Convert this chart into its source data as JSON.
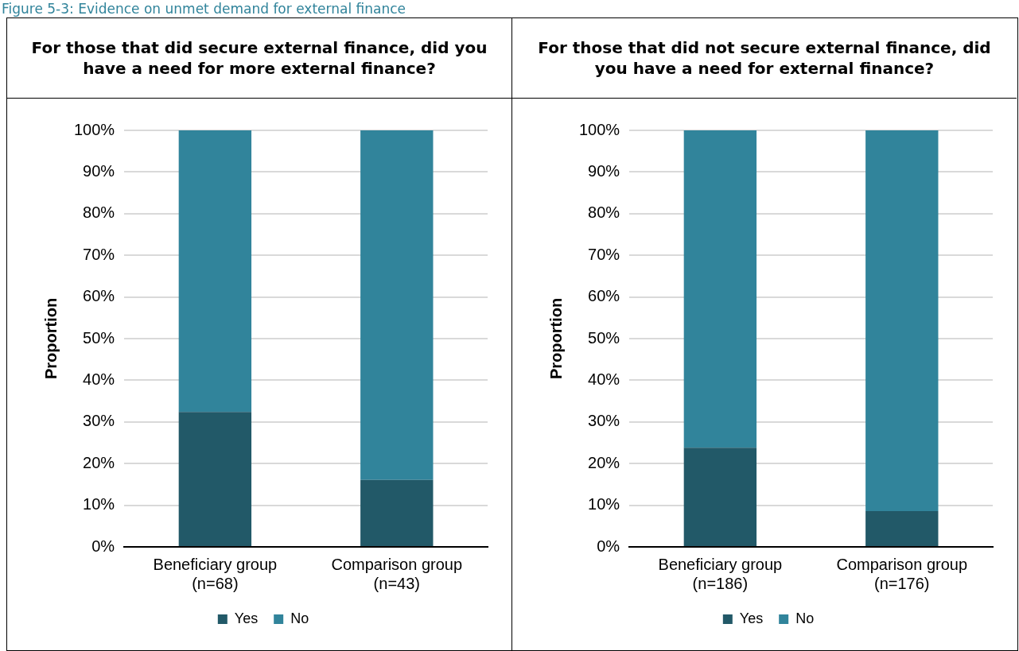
{
  "chart_data": [
    {
      "type": "bar",
      "stacked": true,
      "title": "For those that did secure external finance, did you have a need for more external finance?",
      "annotations": [
        "Figure 5-3: Evidence on unmet demand for external finance"
      ],
      "ylabel": "Proportion",
      "categories": [
        "Beneficiary group\n(n=68)",
        "Comparison group\n(n=43)"
      ],
      "series": [
        {
          "name": "Yes",
          "color": "#225968",
          "values": [
            32.4,
            16.1
          ]
        },
        {
          "name": "No",
          "color": "#31849b",
          "values": [
            67.6,
            83.9
          ]
        }
      ],
      "ylim": [
        0,
        100
      ],
      "yticks": [
        {
          "value": 0,
          "label": "0%"
        },
        {
          "value": 10,
          "label": "10%"
        },
        {
          "value": 20,
          "label": "20%"
        },
        {
          "value": 30,
          "label": "30%"
        },
        {
          "value": 40,
          "label": "40%"
        },
        {
          "value": 50,
          "label": "50%"
        },
        {
          "value": 60,
          "label": "60%"
        },
        {
          "value": 70,
          "label": "70%"
        },
        {
          "value": 80,
          "label": "80%"
        },
        {
          "value": 90,
          "label": "90%"
        },
        {
          "value": 100,
          "label": "100%"
        }
      ],
      "grid": "y",
      "legend": "bottom"
    },
    {
      "type": "bar",
      "stacked": true,
      "title": "For those that did not secure external finance, did you have a need for external finance?",
      "ylabel": "Proportion",
      "categories": [
        "Beneficiary group\n(n=186)",
        "Comparison group\n(n=176)"
      ],
      "series": [
        {
          "name": "Yes",
          "color": "#225968",
          "values": [
            23.8,
            8.6
          ]
        },
        {
          "name": "No",
          "color": "#31849b",
          "values": [
            76.2,
            91.4
          ]
        }
      ],
      "ylim": [
        0,
        100
      ],
      "yticks": [
        {
          "value": 0,
          "label": "0%"
        },
        {
          "value": 10,
          "label": "10%"
        },
        {
          "value": 20,
          "label": "20%"
        },
        {
          "value": 30,
          "label": "30%"
        },
        {
          "value": 40,
          "label": "40%"
        },
        {
          "value": 50,
          "label": "50%"
        },
        {
          "value": 60,
          "label": "60%"
        },
        {
          "value": 70,
          "label": "70%"
        },
        {
          "value": 80,
          "label": "80%"
        },
        {
          "value": 90,
          "label": "90%"
        },
        {
          "value": 100,
          "label": "100%"
        }
      ],
      "grid": "y",
      "legend": "bottom"
    }
  ]
}
